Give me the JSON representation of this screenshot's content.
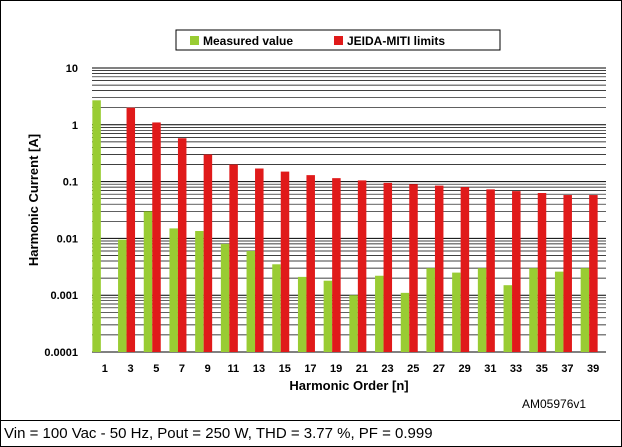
{
  "chart_data": {
    "type": "bar",
    "yscale": "log",
    "ylim": [
      0.0001,
      10
    ],
    "yticks": [
      "10",
      "1",
      "0.1",
      "0.01",
      "0.001",
      "0.0001"
    ],
    "xlabel": "Harmonic Order [n]",
    "ylabel": "Harmonic Current [A]",
    "legend_position": "top",
    "categories": [
      "1",
      "3",
      "5",
      "7",
      "9",
      "11",
      "13",
      "15",
      "17",
      "19",
      "21",
      "23",
      "25",
      "27",
      "29",
      "31",
      "33",
      "35",
      "37",
      "39"
    ],
    "series": [
      {
        "name": "Measured value",
        "color": "#99cc33",
        "values": [
          2.7,
          0.0095,
          0.03,
          0.015,
          0.0135,
          0.008,
          0.006,
          0.0035,
          0.0021,
          0.0018,
          0.001,
          0.0022,
          0.0011,
          0.003,
          0.0025,
          0.003,
          0.0015,
          0.003,
          0.0026,
          0.003
        ]
      },
      {
        "name": "JEIDA-MITI limits",
        "color": "#e01a1a",
        "values": [
          null,
          2.0,
          1.1,
          0.58,
          0.3,
          0.2,
          0.17,
          0.15,
          0.13,
          0.115,
          0.105,
          0.095,
          0.09,
          0.085,
          0.08,
          0.073,
          0.068,
          0.063,
          0.058,
          0.058
        ]
      }
    ]
  },
  "reference": "AM05976v1",
  "caption": "Vin = 100 Vac - 50 Hz, Pout = 250 W, THD = 3.77 %, PF = 0.999"
}
